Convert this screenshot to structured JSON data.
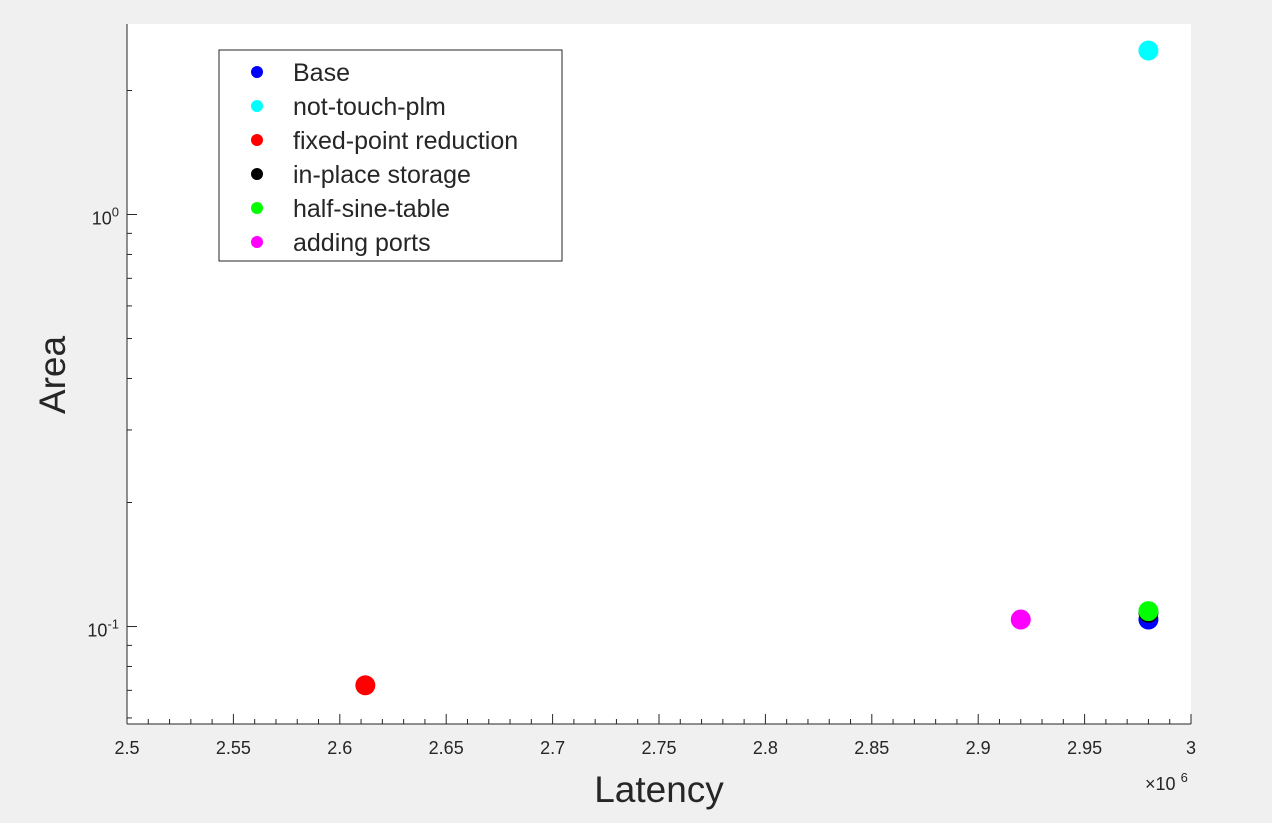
{
  "chart_data": {
    "type": "scatter",
    "title": "",
    "xlabel": "Latency",
    "ylabel": "Area",
    "x_multiplier_label": {
      "base": "×10",
      "exp": "6"
    },
    "xlim": [
      2.5,
      3.0
    ],
    "ylim": [
      0.058,
      2.9
    ],
    "yscale": "log",
    "x_ticks": [
      2.5,
      2.55,
      2.6,
      2.65,
      2.7,
      2.75,
      2.8,
      2.85,
      2.9,
      2.95,
      3.0
    ],
    "x_tick_labels": [
      "2.5",
      "2.55",
      "2.6",
      "2.65",
      "2.7",
      "2.75",
      "2.8",
      "2.85",
      "2.9",
      "2.95",
      "3"
    ],
    "y_ticks": [
      {
        "value": 0.1,
        "base": "10",
        "exp": "-1"
      },
      {
        "value": 1.0,
        "base": "10",
        "exp": "0"
      }
    ],
    "grid": false,
    "legend_position": "top-left",
    "series": [
      {
        "name": "Base",
        "color": "#0000ff",
        "x": [
          2.98
        ],
        "y": [
          0.104
        ]
      },
      {
        "name": "not-touch-plm",
        "color": "#00ffff",
        "x": [
          2.98
        ],
        "y": [
          2.5
        ]
      },
      {
        "name": "fixed-point reduction",
        "color": "#ff0000",
        "x": [
          2.612
        ],
        "y": [
          0.072
        ]
      },
      {
        "name": "in-place storage",
        "color": "#000000",
        "x": [
          2.98
        ],
        "y": [
          0.108
        ]
      },
      {
        "name": "half-sine-table",
        "color": "#00ff00",
        "x": [
          2.98
        ],
        "y": [
          0.109
        ]
      },
      {
        "name": "adding ports",
        "color": "#ff00ff",
        "x": [
          2.92
        ],
        "y": [
          0.104
        ]
      }
    ]
  }
}
